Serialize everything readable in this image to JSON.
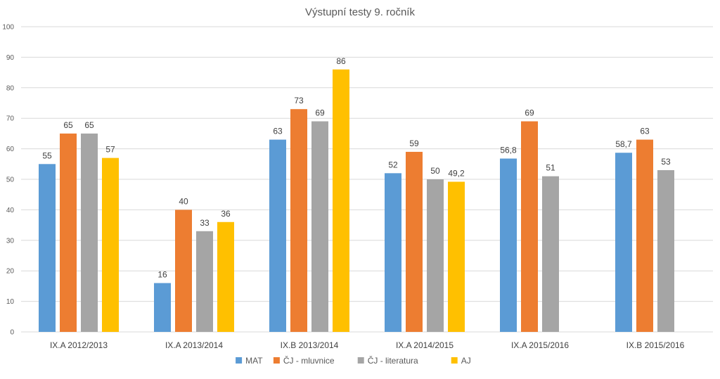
{
  "chart_data": {
    "type": "bar",
    "title": "Výstupní testy 9. ročník",
    "xlabel": "",
    "ylabel": "",
    "ylim": [
      0,
      100
    ],
    "yticks": [
      0,
      10,
      20,
      30,
      40,
      50,
      60,
      70,
      80,
      90,
      100
    ],
    "grid": true,
    "legend_position": "bottom",
    "categories": [
      "IX.A 2012/2013",
      "IX.A 2013/2014",
      "IX.B 2013/2014",
      "IX.A 2014/2015",
      "IX.A 2015/2016",
      "IX.B 2015/2016"
    ],
    "series": [
      {
        "name": "MAT",
        "color": "#5b9bd5",
        "values": [
          55,
          16,
          63,
          52,
          56.8,
          58.7
        ],
        "labels": [
          "55",
          "16",
          "63",
          "52",
          "56,8",
          "58,7"
        ]
      },
      {
        "name": "ČJ - mluvnice",
        "color": "#ed7d31",
        "values": [
          65,
          40,
          73,
          59,
          69,
          63
        ],
        "labels": [
          "65",
          "40",
          "73",
          "59",
          "69",
          "63"
        ]
      },
      {
        "name": "ČJ - literatura",
        "color": "#a5a5a5",
        "values": [
          65,
          33,
          69,
          50,
          51,
          53
        ],
        "labels": [
          "65",
          "33",
          "69",
          "50",
          "51",
          "53"
        ]
      },
      {
        "name": "AJ",
        "color": "#ffc000",
        "values": [
          57,
          36,
          86,
          49.2,
          null,
          null
        ],
        "labels": [
          "57",
          "36",
          "86",
          "49,2",
          "",
          ""
        ]
      }
    ]
  }
}
